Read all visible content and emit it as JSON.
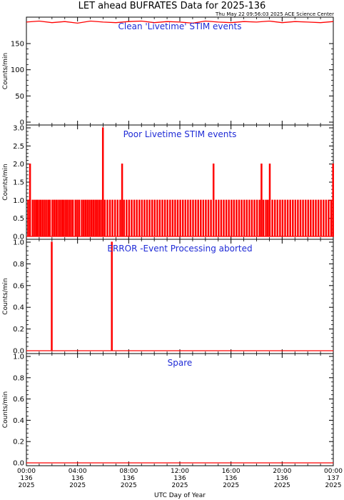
{
  "chart_data": [
    {
      "type": "line",
      "title": "Clean 'Livetime' STIM events",
      "ylabel": "Counts/min",
      "ylim": [
        0,
        195
      ],
      "yticks": [
        "0",
        "50",
        "100",
        "150"
      ],
      "series": [
        {
          "values": [
            [
              0,
              191
            ],
            [
              1,
              193
            ],
            [
              2,
              190
            ],
            [
              3,
              192
            ],
            [
              4,
              189
            ],
            [
              5,
              193
            ],
            [
              6,
              191
            ],
            [
              7,
              190
            ],
            [
              8,
              192
            ],
            [
              9,
              193
            ],
            [
              10,
              190
            ],
            [
              11,
              192
            ],
            [
              12,
              191
            ],
            [
              13,
              189
            ],
            [
              14,
              193
            ],
            [
              15,
              191
            ],
            [
              16,
              190
            ],
            [
              17,
              192
            ],
            [
              18,
              191
            ],
            [
              19,
              193
            ],
            [
              20,
              190
            ],
            [
              21,
              192
            ],
            [
              22,
              191
            ],
            [
              23,
              190
            ],
            [
              24,
              192
            ]
          ]
        }
      ]
    },
    {
      "type": "line",
      "title": "Poor Livetime STIM events",
      "ylabel": "Counts/min",
      "ylim": [
        0,
        3
      ],
      "yticks": [
        "0.0",
        "0.5",
        "1.0",
        "1.5",
        "2.0",
        "2.5",
        "3.0"
      ],
      "series": [
        {
          "spikes": [
            [
              0.1,
              1
            ],
            [
              0.25,
              2
            ],
            [
              0.45,
              1
            ],
            [
              0.6,
              1
            ],
            [
              0.75,
              1
            ],
            [
              0.85,
              1
            ],
            [
              1.0,
              1
            ],
            [
              1.1,
              1
            ],
            [
              1.25,
              1
            ],
            [
              1.4,
              1
            ],
            [
              1.55,
              1
            ],
            [
              1.7,
              1
            ],
            [
              1.8,
              1
            ],
            [
              2.0,
              1
            ],
            [
              2.15,
              1
            ],
            [
              2.3,
              1
            ],
            [
              2.45,
              1
            ],
            [
              2.6,
              1
            ],
            [
              2.75,
              1
            ],
            [
              2.85,
              1
            ],
            [
              3.0,
              1
            ],
            [
              3.15,
              1
            ],
            [
              3.3,
              1
            ],
            [
              3.45,
              1
            ],
            [
              3.6,
              1
            ],
            [
              3.8,
              1
            ],
            [
              3.95,
              1
            ],
            [
              4.1,
              1
            ],
            [
              4.3,
              1
            ],
            [
              4.45,
              1
            ],
            [
              4.6,
              1
            ],
            [
              4.75,
              1
            ],
            [
              4.9,
              1
            ],
            [
              5.05,
              1
            ],
            [
              5.2,
              1
            ],
            [
              5.35,
              1
            ],
            [
              5.5,
              1
            ],
            [
              5.65,
              1
            ],
            [
              5.8,
              1
            ],
            [
              5.95,
              3
            ],
            [
              6.1,
              1
            ],
            [
              6.3,
              1
            ],
            [
              6.5,
              1
            ],
            [
              6.7,
              1
            ],
            [
              6.9,
              1
            ],
            [
              7.1,
              1
            ],
            [
              7.3,
              1
            ],
            [
              7.45,
              2
            ],
            [
              7.6,
              1
            ],
            [
              7.8,
              1
            ],
            [
              8.0,
              1
            ],
            [
              8.2,
              1
            ],
            [
              8.4,
              1
            ],
            [
              8.6,
              1
            ],
            [
              8.8,
              1
            ],
            [
              9.0,
              1
            ],
            [
              9.2,
              1
            ],
            [
              9.4,
              1
            ],
            [
              9.6,
              1
            ],
            [
              9.8,
              1
            ],
            [
              10.0,
              1
            ],
            [
              10.2,
              1
            ],
            [
              10.4,
              1
            ],
            [
              10.6,
              1
            ],
            [
              10.8,
              1
            ],
            [
              11.0,
              1
            ],
            [
              11.2,
              1
            ],
            [
              11.4,
              1
            ],
            [
              11.6,
              1
            ],
            [
              11.8,
              1
            ],
            [
              12.0,
              1
            ],
            [
              12.2,
              1
            ],
            [
              12.4,
              1
            ],
            [
              12.6,
              1
            ],
            [
              12.8,
              1
            ],
            [
              13.0,
              1
            ],
            [
              13.2,
              1
            ],
            [
              13.4,
              1
            ],
            [
              13.6,
              1
            ],
            [
              13.8,
              1
            ],
            [
              14.0,
              1
            ],
            [
              14.2,
              1
            ],
            [
              14.4,
              1
            ],
            [
              14.6,
              2
            ],
            [
              14.8,
              1
            ],
            [
              15.0,
              1
            ],
            [
              15.2,
              1
            ],
            [
              15.4,
              1
            ],
            [
              15.6,
              1
            ],
            [
              15.8,
              1
            ],
            [
              16.0,
              1
            ],
            [
              16.2,
              1
            ],
            [
              16.4,
              1
            ],
            [
              16.6,
              1
            ],
            [
              16.8,
              1
            ],
            [
              17.0,
              1
            ],
            [
              17.2,
              1
            ],
            [
              17.4,
              1
            ],
            [
              17.6,
              1
            ],
            [
              17.8,
              1
            ],
            [
              18.0,
              1
            ],
            [
              18.2,
              1
            ],
            [
              18.35,
              2
            ],
            [
              18.5,
              1
            ],
            [
              18.7,
              1
            ],
            [
              18.85,
              1
            ],
            [
              19.0,
              2
            ],
            [
              19.2,
              1
            ],
            [
              19.4,
              1
            ],
            [
              19.6,
              1
            ],
            [
              19.8,
              1
            ],
            [
              20.0,
              1
            ],
            [
              20.2,
              1
            ],
            [
              20.4,
              1
            ],
            [
              20.6,
              1
            ],
            [
              20.8,
              1
            ],
            [
              21.0,
              1
            ],
            [
              21.2,
              1
            ],
            [
              21.4,
              1
            ],
            [
              21.6,
              1
            ],
            [
              21.8,
              1
            ],
            [
              22.0,
              1
            ],
            [
              22.2,
              1
            ],
            [
              22.4,
              1
            ],
            [
              22.6,
              1
            ],
            [
              22.8,
              1
            ],
            [
              23.0,
              1
            ],
            [
              23.2,
              1
            ],
            [
              23.4,
              1
            ],
            [
              23.6,
              1
            ],
            [
              23.8,
              1
            ],
            [
              23.95,
              2
            ]
          ]
        }
      ]
    },
    {
      "type": "line",
      "title": "ERROR -Event Processing aborted",
      "ylabel": "Counts/min",
      "ylim": [
        0,
        1
      ],
      "yticks": [
        "0.0",
        "0.2",
        "0.4",
        "0.6",
        "0.8",
        "1.0"
      ],
      "series": [
        {
          "spikes": [
            [
              1.95,
              1
            ],
            [
              6.65,
              1
            ]
          ]
        }
      ]
    },
    {
      "type": "line",
      "title": "Spare",
      "ylabel": "Counts/min",
      "ylim": [
        0,
        1
      ],
      "yticks": [
        "0.0",
        "0.2",
        "0.4",
        "0.6",
        "0.8",
        "1.0"
      ],
      "series": [
        {
          "values": [
            [
              0,
              0
            ],
            [
              24,
              0
            ]
          ]
        }
      ]
    }
  ],
  "figure": {
    "title": "LET ahead BUFRATES Data for 2025-136",
    "timestamp": "Thu May 22 09:56:03 2025 ACE Science Center",
    "xlabel": "UTC Day of Year",
    "xlim_hours": [
      0,
      24
    ],
    "xticks": [
      {
        "hour": 0,
        "time": "00:00",
        "day": "136",
        "year": "2025"
      },
      {
        "hour": 4,
        "time": "04:00",
        "day": "136",
        "year": "2025"
      },
      {
        "hour": 8,
        "time": "08:00",
        "day": "136",
        "year": "2025"
      },
      {
        "hour": 12,
        "time": "12:00",
        "day": "136",
        "year": "2025"
      },
      {
        "hour": 16,
        "time": "16:00",
        "day": "136",
        "year": "2025"
      },
      {
        "hour": 20,
        "time": "20:00",
        "day": "136",
        "year": "2025"
      },
      {
        "hour": 24,
        "time": "00:00",
        "day": "137",
        "year": "2025"
      }
    ],
    "series_color": "#ff0000",
    "title_color": "#1f2bd6"
  }
}
